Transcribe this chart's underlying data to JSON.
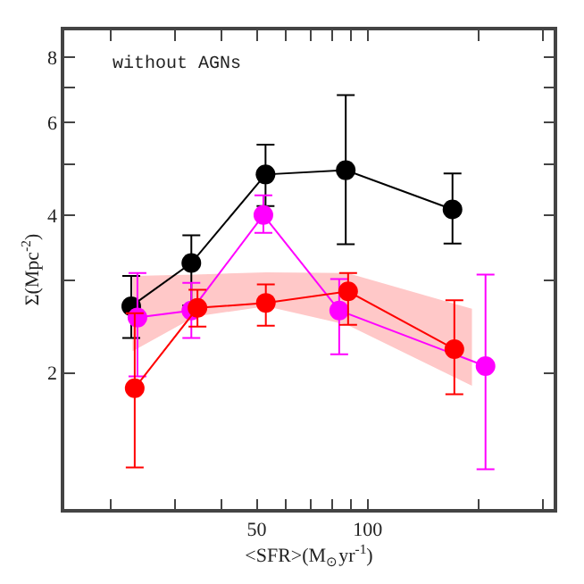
{
  "chart_data": {
    "type": "line",
    "xlabel": "<SFR>(M$_{⊙}$yr$^{-1}$)",
    "ylabel": "Σ(Mpc$^{-2}$)",
    "annotations": [
      "without AGNs"
    ],
    "log": "xy",
    "xlim": [
      15,
      320
    ],
    "ylim": [
      1.1,
      9
    ],
    "xticks": [
      {
        "value": 20,
        "label": null
      },
      {
        "value": 30,
        "label": null
      },
      {
        "value": 40,
        "label": null
      },
      50,
      {
        "value": 60,
        "label": null
      },
      {
        "value": 70,
        "label": null
      },
      {
        "value": 80,
        "label": null
      },
      {
        "value": 90,
        "label": null
      },
      100,
      {
        "value": 200,
        "label": null
      },
      {
        "value": 300,
        "label": null
      }
    ],
    "yticks": [
      2,
      {
        "value": 3,
        "label": null
      },
      4,
      {
        "value": 5,
        "label": null
      },
      6,
      {
        "value": 7,
        "label": null
      },
      8
    ],
    "marker": "circle",
    "line_style": "solid",
    "series": [
      {
        "type": "area",
        "color": "#ffc8c8",
        "x": [
          23,
          34,
          53,
          88,
          192
        ],
        "values": [
          null,
          null,
          null,
          null,
          null
        ],
        "lower": [
          2.2,
          2.56,
          2.68,
          2.47,
          1.89
        ],
        "upper": [
          3.06,
          3.08,
          3.11,
          3.1,
          2.65
        ]
      },
      {
        "color": "#000000",
        "x": [
          22.8,
          33.2,
          52.8,
          87.2,
          170
        ],
        "values": [
          2.68,
          3.24,
          4.78,
          4.87,
          4.1
        ],
        "errors": [
          [
            2.33,
            3.06
          ],
          [
            2.69,
            3.66
          ],
          [
            4.16,
            5.45
          ],
          [
            3.52,
            6.77
          ],
          [
            3.53,
            4.8
          ]
        ]
      },
      {
        "color": "#ff00ff",
        "x": [
          23.7,
          33.2,
          52.1,
          83.7,
          209
        ],
        "values": [
          2.55,
          2.63,
          4.0,
          2.63,
          2.06
        ],
        "errors": [
          [
            1.97,
            3.1
          ],
          [
            2.33,
            2.97
          ],
          [
            3.7,
            4.36
          ],
          [
            2.17,
            3.02
          ],
          [
            1.31,
            3.08
          ]
        ]
      },
      {
        "color": "#ff0000",
        "x": [
          23.3,
          34.5,
          52.9,
          88.5,
          172
        ],
        "values": [
          1.87,
          2.66,
          2.72,
          2.86,
          2.22
        ],
        "errors": [
          [
            1.32,
            2.6
          ],
          [
            2.45,
            2.88
          ],
          [
            2.46,
            2.95
          ],
          [
            2.47,
            3.1
          ],
          [
            1.82,
            2.75
          ]
        ]
      }
    ]
  }
}
